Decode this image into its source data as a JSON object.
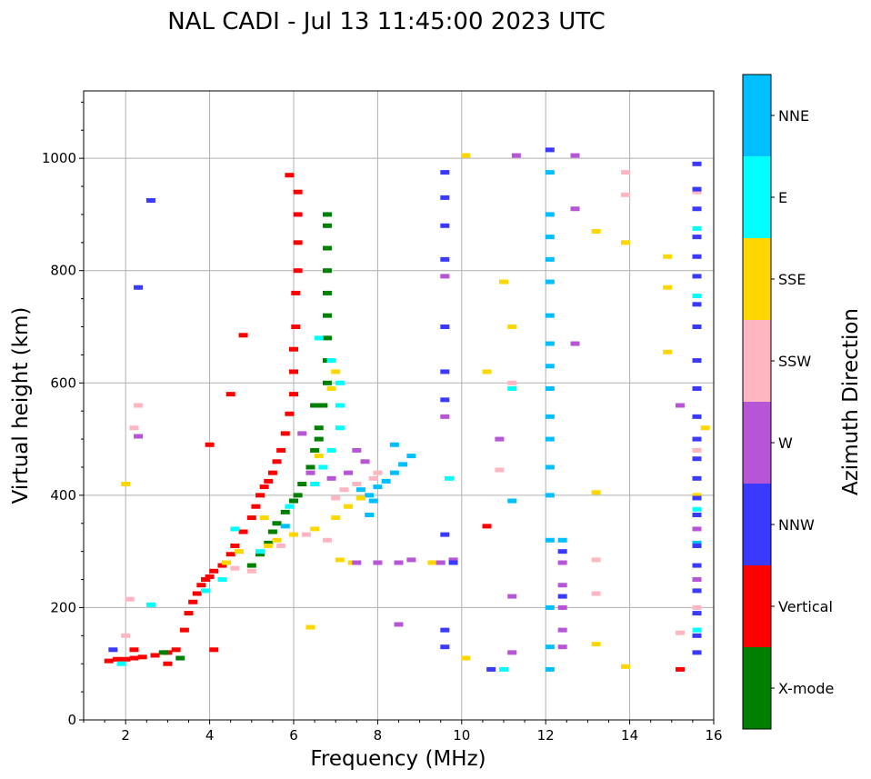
{
  "chart_data": {
    "type": "scatter",
    "title": "NAL CADI - Jul 13 11:45:00 2023 UTC",
    "xlabel": "Frequency (MHz)",
    "ylabel": "Virtual height (km)",
    "xlim": [
      1,
      16
    ],
    "ylim": [
      0,
      1120
    ],
    "xticks": [
      2,
      4,
      6,
      8,
      10,
      12,
      14,
      16
    ],
    "yticks": [
      0,
      200,
      400,
      600,
      800,
      1000
    ],
    "grid": true,
    "colorbar": {
      "label": "Azimuth Direction",
      "categories": [
        {
          "name": "X-mode",
          "color": "#008000"
        },
        {
          "name": "Vertical",
          "color": "#ff0000"
        },
        {
          "name": "NNW",
          "color": "#3a3aff"
        },
        {
          "name": "W",
          "color": "#b655d6"
        },
        {
          "name": "SSW",
          "color": "#ffb6c1"
        },
        {
          "name": "SSE",
          "color": "#ffd700"
        },
        {
          "name": "E",
          "color": "#00ffff"
        },
        {
          "name": "NNE",
          "color": "#00bfff"
        }
      ]
    },
    "series": [
      {
        "name": "Vertical",
        "points": [
          [
            1.6,
            105
          ],
          [
            1.8,
            108
          ],
          [
            2.0,
            108
          ],
          [
            2.2,
            110
          ],
          [
            2.4,
            112
          ],
          [
            2.7,
            115
          ],
          [
            3.0,
            120
          ],
          [
            3.2,
            125
          ],
          [
            3.4,
            160
          ],
          [
            3.5,
            190
          ],
          [
            3.6,
            210
          ],
          [
            3.7,
            225
          ],
          [
            3.8,
            240
          ],
          [
            3.9,
            250
          ],
          [
            4.0,
            255
          ],
          [
            4.1,
            265
          ],
          [
            4.3,
            275
          ],
          [
            4.5,
            295
          ],
          [
            4.6,
            310
          ],
          [
            4.8,
            335
          ],
          [
            5.0,
            360
          ],
          [
            5.1,
            380
          ],
          [
            5.2,
            400
          ],
          [
            5.3,
            415
          ],
          [
            5.4,
            425
          ],
          [
            5.5,
            440
          ],
          [
            5.6,
            460
          ],
          [
            5.7,
            480
          ],
          [
            5.8,
            510
          ],
          [
            5.9,
            545
          ],
          [
            6.0,
            580
          ],
          [
            6.0,
            620
          ],
          [
            6.0,
            660
          ],
          [
            6.05,
            700
          ],
          [
            6.05,
            760
          ],
          [
            6.1,
            800
          ],
          [
            6.1,
            850
          ],
          [
            6.1,
            900
          ],
          [
            6.1,
            940
          ],
          [
            5.9,
            970
          ],
          [
            4.0,
            490
          ],
          [
            4.5,
            580
          ],
          [
            2.2,
            125
          ],
          [
            3.0,
            100
          ],
          [
            4.1,
            125
          ],
          [
            15.2,
            90
          ],
          [
            4.8,
            685
          ],
          [
            10.6,
            345
          ]
        ]
      },
      {
        "name": "X-mode",
        "points": [
          [
            5.0,
            275
          ],
          [
            5.2,
            295
          ],
          [
            5.4,
            315
          ],
          [
            5.5,
            335
          ],
          [
            5.6,
            350
          ],
          [
            5.8,
            370
          ],
          [
            6.0,
            390
          ],
          [
            6.1,
            400
          ],
          [
            6.2,
            420
          ],
          [
            6.4,
            450
          ],
          [
            6.5,
            480
          ],
          [
            6.6,
            520
          ],
          [
            6.7,
            560
          ],
          [
            6.8,
            600
          ],
          [
            6.8,
            640
          ],
          [
            6.8,
            680
          ],
          [
            6.8,
            720
          ],
          [
            6.8,
            760
          ],
          [
            6.8,
            800
          ],
          [
            6.8,
            840
          ],
          [
            6.8,
            880
          ],
          [
            6.8,
            900
          ],
          [
            6.5,
            560
          ],
          [
            6.6,
            500
          ],
          [
            3.3,
            110
          ],
          [
            2.9,
            120
          ]
        ]
      },
      {
        "name": "NNE",
        "points": [
          [
            7.6,
            410
          ],
          [
            7.8,
            400
          ],
          [
            8.0,
            415
          ],
          [
            8.2,
            425
          ],
          [
            8.4,
            440
          ],
          [
            8.6,
            455
          ],
          [
            8.8,
            470
          ],
          [
            7.9,
            390
          ],
          [
            7.8,
            365
          ],
          [
            12.1,
            90
          ],
          [
            12.1,
            130
          ],
          [
            12.1,
            200
          ],
          [
            12.1,
            320
          ],
          [
            12.4,
            320
          ],
          [
            12.1,
            400
          ],
          [
            12.1,
            450
          ],
          [
            12.1,
            500
          ],
          [
            12.1,
            540
          ],
          [
            12.1,
            590
          ],
          [
            12.1,
            630
          ],
          [
            12.1,
            670
          ],
          [
            12.1,
            720
          ],
          [
            12.1,
            780
          ],
          [
            12.1,
            820
          ],
          [
            12.1,
            860
          ],
          [
            12.1,
            900
          ],
          [
            12.1,
            975
          ],
          [
            8.4,
            490
          ],
          [
            15.6,
            315
          ],
          [
            5.8,
            345
          ],
          [
            11.2,
            390
          ]
        ]
      },
      {
        "name": "E",
        "points": [
          [
            6.5,
            420
          ],
          [
            6.7,
            450
          ],
          [
            6.9,
            480
          ],
          [
            7.1,
            520
          ],
          [
            7.1,
            560
          ],
          [
            7.1,
            600
          ],
          [
            6.9,
            640
          ],
          [
            6.6,
            680
          ],
          [
            5.9,
            380
          ],
          [
            4.6,
            340
          ],
          [
            5.2,
            300
          ],
          [
            3.9,
            230
          ],
          [
            4.3,
            250
          ],
          [
            1.9,
            100
          ],
          [
            11.0,
            90
          ],
          [
            15.6,
            160
          ],
          [
            15.6,
            375
          ],
          [
            15.6,
            755
          ],
          [
            15.6,
            875
          ],
          [
            9.7,
            430
          ],
          [
            2.6,
            205
          ],
          [
            11.2,
            590
          ]
        ]
      },
      {
        "name": "SSE",
        "points": [
          [
            5.4,
            310
          ],
          [
            5.6,
            320
          ],
          [
            6.0,
            330
          ],
          [
            6.5,
            340
          ],
          [
            7.0,
            360
          ],
          [
            7.3,
            380
          ],
          [
            7.6,
            395
          ],
          [
            6.9,
            590
          ],
          [
            7.0,
            620
          ],
          [
            6.6,
            470
          ],
          [
            7.1,
            285
          ],
          [
            7.4,
            280
          ],
          [
            4.4,
            280
          ],
          [
            4.7,
            300
          ],
          [
            5.3,
            360
          ],
          [
            6.4,
            165
          ],
          [
            9.3,
            280
          ],
          [
            10.1,
            1005
          ],
          [
            10.6,
            620
          ],
          [
            11.0,
            780
          ],
          [
            13.2,
            870
          ],
          [
            13.9,
            850
          ],
          [
            14.9,
            825
          ],
          [
            14.9,
            770
          ],
          [
            14.9,
            655
          ],
          [
            13.2,
            135
          ],
          [
            15.6,
            400
          ],
          [
            15.8,
            520
          ],
          [
            13.2,
            405
          ],
          [
            10.1,
            110
          ],
          [
            13.9,
            95
          ],
          [
            11.2,
            700
          ],
          [
            2.0,
            420
          ]
        ]
      },
      {
        "name": "SSW",
        "points": [
          [
            7.0,
            395
          ],
          [
            7.2,
            410
          ],
          [
            7.5,
            420
          ],
          [
            7.9,
            430
          ],
          [
            8.0,
            440
          ],
          [
            6.8,
            320
          ],
          [
            6.3,
            330
          ],
          [
            5.7,
            310
          ],
          [
            5.0,
            265
          ],
          [
            4.6,
            270
          ],
          [
            2.0,
            150
          ],
          [
            2.1,
            215
          ],
          [
            2.2,
            520
          ],
          [
            2.3,
            560
          ],
          [
            10.9,
            445
          ],
          [
            11.2,
            600
          ],
          [
            13.2,
            285
          ],
          [
            13.9,
            935
          ],
          [
            13.9,
            975
          ],
          [
            15.2,
            560
          ],
          [
            15.6,
            480
          ],
          [
            15.6,
            200
          ],
          [
            15.6,
            940
          ],
          [
            15.2,
            155
          ],
          [
            13.2,
            225
          ]
        ]
      },
      {
        "name": "W",
        "points": [
          [
            7.5,
            280
          ],
          [
            8.0,
            280
          ],
          [
            8.5,
            280
          ],
          [
            8.8,
            285
          ],
          [
            9.5,
            280
          ],
          [
            9.8,
            285
          ],
          [
            12.4,
            280
          ],
          [
            12.4,
            240
          ],
          [
            12.4,
            200
          ],
          [
            12.4,
            160
          ],
          [
            12.4,
            130
          ],
          [
            7.5,
            480
          ],
          [
            7.7,
            460
          ],
          [
            7.3,
            440
          ],
          [
            6.9,
            430
          ],
          [
            6.4,
            440
          ],
          [
            6.2,
            510
          ],
          [
            2.3,
            505
          ],
          [
            11.3,
            1005
          ],
          [
            12.7,
            1005
          ],
          [
            12.7,
            910
          ],
          [
            12.7,
            670
          ],
          [
            10.9,
            500
          ],
          [
            11.2,
            120
          ],
          [
            11.2,
            220
          ],
          [
            15.6,
            340
          ],
          [
            15.6,
            250
          ],
          [
            15.2,
            560
          ],
          [
            8.5,
            170
          ],
          [
            9.6,
            540
          ],
          [
            9.6,
            790
          ]
        ]
      },
      {
        "name": "NNW",
        "points": [
          [
            2.6,
            925
          ],
          [
            2.3,
            770
          ],
          [
            9.6,
            975
          ],
          [
            9.6,
            930
          ],
          [
            9.6,
            880
          ],
          [
            9.6,
            820
          ],
          [
            9.6,
            700
          ],
          [
            9.6,
            620
          ],
          [
            9.6,
            570
          ],
          [
            9.6,
            330
          ],
          [
            9.6,
            160
          ],
          [
            9.6,
            130
          ],
          [
            9.8,
            280
          ],
          [
            12.1,
            1015
          ],
          [
            12.4,
            220
          ],
          [
            12.4,
            300
          ],
          [
            15.6,
            990
          ],
          [
            15.6,
            945
          ],
          [
            15.6,
            910
          ],
          [
            15.6,
            860
          ],
          [
            15.6,
            825
          ],
          [
            15.6,
            790
          ],
          [
            15.6,
            740
          ],
          [
            15.6,
            700
          ],
          [
            15.6,
            640
          ],
          [
            15.6,
            590
          ],
          [
            15.6,
            540
          ],
          [
            15.6,
            500
          ],
          [
            15.6,
            465
          ],
          [
            15.6,
            430
          ],
          [
            15.6,
            395
          ],
          [
            15.6,
            365
          ],
          [
            15.6,
            310
          ],
          [
            15.6,
            275
          ],
          [
            15.6,
            230
          ],
          [
            15.6,
            190
          ],
          [
            15.6,
            150
          ],
          [
            15.6,
            120
          ],
          [
            10.7,
            90
          ],
          [
            1.7,
            125
          ]
        ]
      }
    ]
  }
}
